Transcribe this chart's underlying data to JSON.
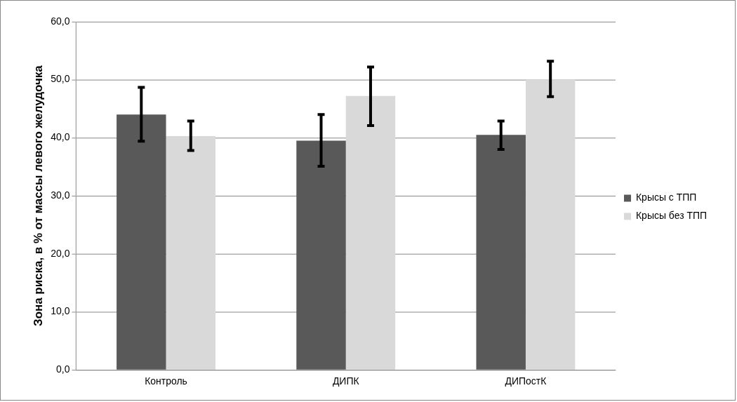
{
  "chart_data": {
    "type": "bar",
    "ylabel": "Зона риска, в % от массы левого желудочка",
    "categories": [
      "Контроль",
      "ДИПК",
      "ДИПостК"
    ],
    "series": [
      {
        "name": "Крысы с ТПП",
        "color": "#595959",
        "values": [
          44.0,
          39.5,
          40.5
        ],
        "errors": [
          [
            39.4,
            48.7
          ],
          [
            35.1,
            44.0
          ],
          [
            38.0,
            42.9
          ]
        ]
      },
      {
        "name": "Крысы без ТПП",
        "color": "#d9d9d9",
        "values": [
          40.3,
          47.2,
          50.0
        ],
        "errors": [
          [
            37.8,
            42.9
          ],
          [
            42.1,
            52.2
          ],
          [
            47.1,
            53.2
          ]
        ]
      }
    ],
    "ylim": [
      0,
      60
    ],
    "yticks": [
      {
        "value": 0,
        "label": "0,0"
      },
      {
        "value": 10,
        "label": "10,0"
      },
      {
        "value": 20,
        "label": "20,0"
      },
      {
        "value": 30,
        "label": "30,0"
      },
      {
        "value": 40,
        "label": "40,0"
      },
      {
        "value": 50,
        "label": "50,0"
      },
      {
        "value": 60,
        "label": "60,0"
      }
    ],
    "grid": "y",
    "legend": "right"
  }
}
